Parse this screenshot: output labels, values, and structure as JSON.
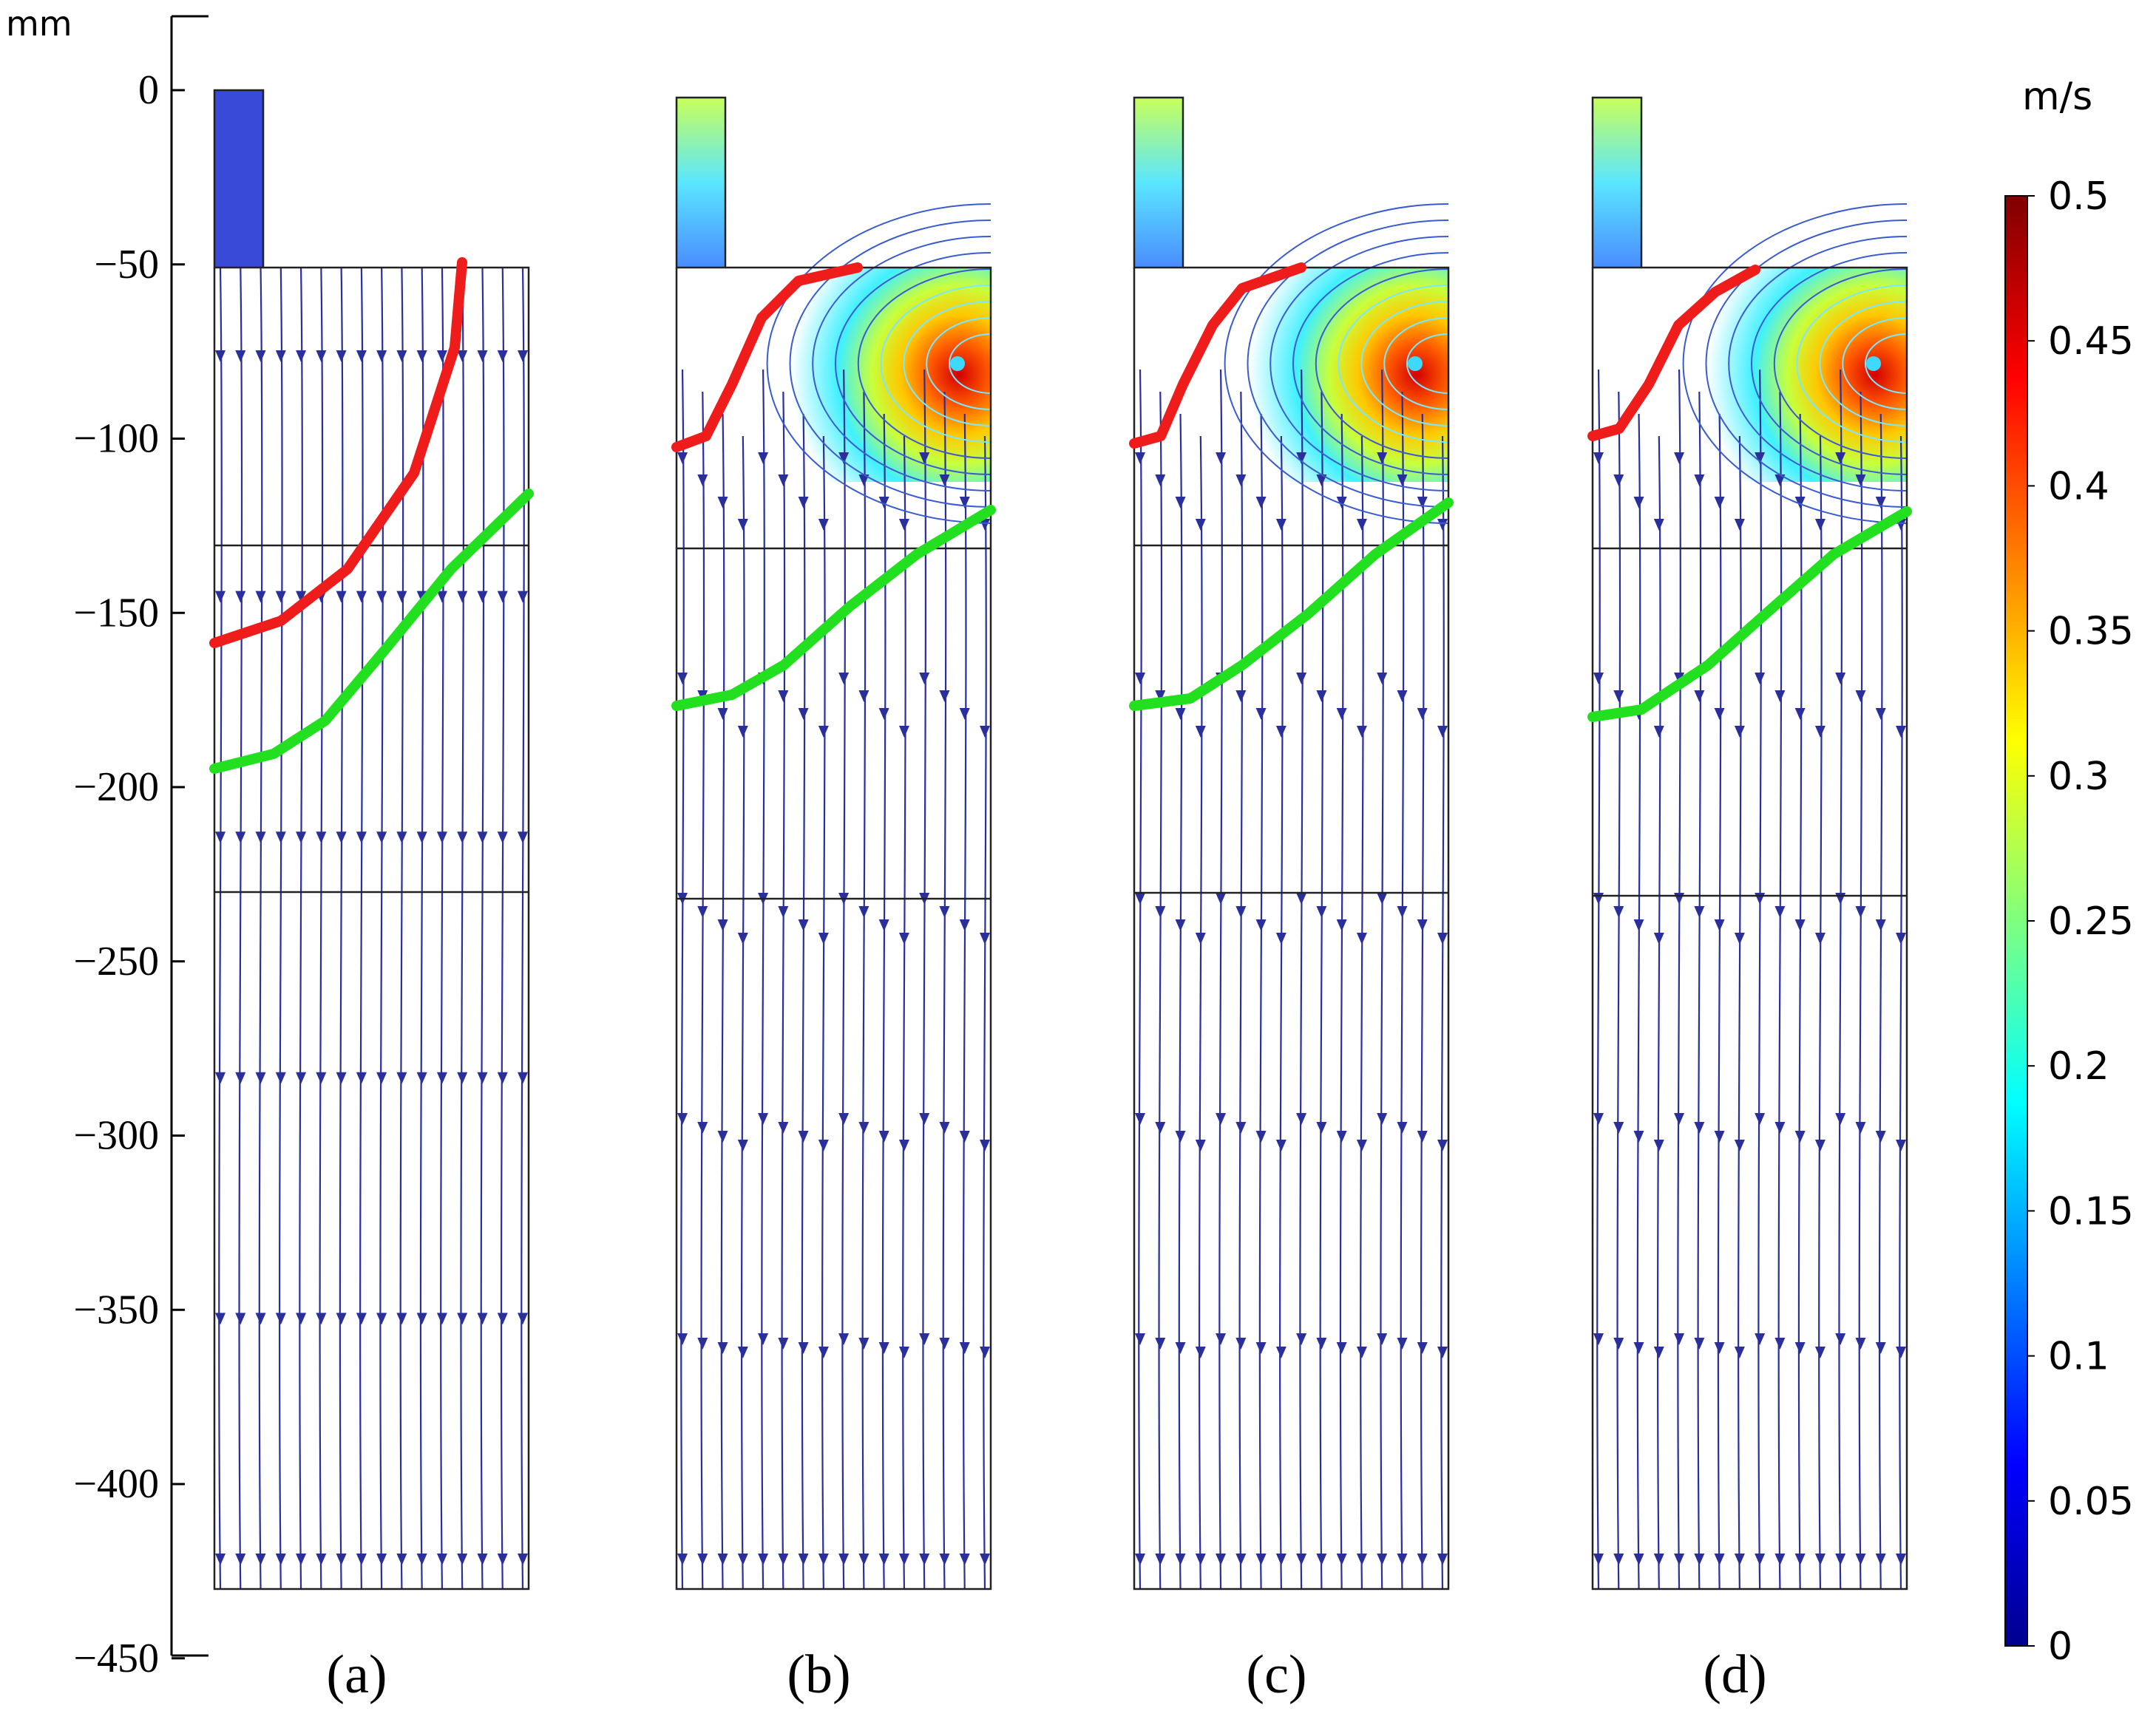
{
  "axis": {
    "unit": "mm",
    "ticks": [
      "0",
      "−50",
      "−100",
      "−150",
      "−200",
      "−250",
      "−300",
      "−350",
      "−400",
      "−450"
    ]
  },
  "panels": [
    {
      "label": "(a)"
    },
    {
      "label": "(b)"
    },
    {
      "label": "(c)"
    },
    {
      "label": "(d)"
    }
  ],
  "colorbar": {
    "unit": "m/s",
    "ticks": [
      "0.5",
      "0.45",
      "0.4",
      "0.35",
      "0.3",
      "0.25",
      "0.2",
      "0.15",
      "0.1",
      "0.05",
      "0"
    ],
    "min": 0,
    "max": 0.5
  },
  "colors": {
    "streamline": "#2b2f9a",
    "front_red": "#ef1c1c",
    "front_green": "#22e01f",
    "frame": "#222222"
  }
}
